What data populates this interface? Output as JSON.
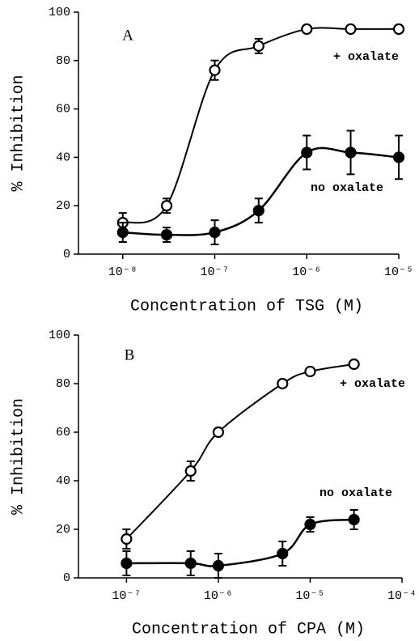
{
  "chart_data": [
    {
      "type": "scatter",
      "title": "A",
      "xlabel": "Concentration of TSG (M)",
      "ylabel": "% Inhibition",
      "log_x": true,
      "xlim": [
        3.3e-09,
        1e-05
      ],
      "xticks": [
        {
          "value": 1e-08,
          "label": "10⁻⁸"
        },
        {
          "value": 1e-07,
          "label": "10⁻⁷"
        },
        {
          "value": 1e-06,
          "label": "10⁻⁶"
        },
        {
          "value": 1e-05,
          "label": "10⁻⁵"
        }
      ],
      "ylim": [
        0,
        100
      ],
      "yticks": [
        0,
        20,
        40,
        60,
        80,
        100
      ],
      "grid": false,
      "x": [
        1e-08,
        3e-08,
        1e-07,
        3e-07,
        1e-06,
        3e-06,
        1e-05
      ],
      "series": [
        {
          "name": "+ oxalate",
          "color": "#000000",
          "marker": "open",
          "values": [
            13,
            20,
            76,
            86,
            93,
            93,
            93
          ],
          "errors": [
            4,
            3,
            4,
            3,
            1,
            1,
            1
          ]
        },
        {
          "name": "no oxalate",
          "color": "#000000",
          "marker": "filled",
          "values": [
            9,
            8,
            9,
            18,
            42,
            42,
            40
          ],
          "errors": [
            4,
            3,
            5,
            5,
            7,
            9,
            9
          ]
        }
      ]
    },
    {
      "type": "scatter",
      "title": "B",
      "xlabel": "Concentration of CPA (M)",
      "ylabel": "% Inhibition",
      "log_x": true,
      "xlim": [
        3e-08,
        0.0001
      ],
      "xticks": [
        {
          "value": 1e-07,
          "label": "10⁻⁷"
        },
        {
          "value": 1e-06,
          "label": "10⁻⁶"
        },
        {
          "value": 1e-05,
          "label": "10⁻⁵"
        },
        {
          "value": 0.0001,
          "label": "10⁻⁴"
        }
      ],
      "ylim": [
        0,
        100
      ],
      "yticks": [
        0,
        20,
        40,
        60,
        80,
        100
      ],
      "grid": false,
      "x": [
        1e-07,
        5e-07,
        1e-06,
        5e-06,
        1e-05,
        3e-05
      ],
      "series": [
        {
          "name": "+ oxalate",
          "color": "#000000",
          "marker": "open",
          "values": [
            16,
            44,
            60,
            80,
            85,
            88
          ],
          "errors": [
            4,
            4,
            1,
            1,
            1,
            1
          ]
        },
        {
          "name": "no oxalate",
          "color": "#000000",
          "marker": "filled",
          "values": [
            6,
            6,
            5,
            10,
            22,
            24
          ],
          "errors": [
            5,
            5,
            5,
            5,
            3,
            4
          ]
        }
      ]
    }
  ]
}
